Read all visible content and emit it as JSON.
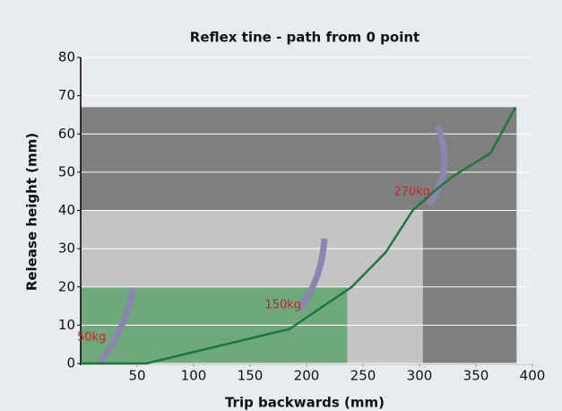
{
  "chart_data": {
    "type": "line",
    "title": "Reflex tine - path from 0 point",
    "x_label": "Trip backwards (mm)",
    "y_label": "Release height (mm)",
    "xlim": [
      0,
      400
    ],
    "xticks": [
      50,
      100,
      150,
      200,
      250,
      300,
      350,
      400
    ],
    "ylim": [
      0,
      80
    ],
    "yticks": [
      0,
      10,
      20,
      30,
      40,
      50,
      60,
      70,
      80
    ],
    "grid": true,
    "zones": [
      {
        "x": [
          0,
          386
        ],
        "y": [
          0,
          67
        ],
        "color": "#7f7f7f"
      },
      {
        "x": [
          0,
          303
        ],
        "y": [
          0,
          40
        ],
        "color": "#c4c4c4"
      },
      {
        "x": [
          0,
          236
        ],
        "y": [
          0,
          20
        ],
        "color": "#6fa87a"
      }
    ],
    "series": [
      {
        "color": "#1a7a3a",
        "x": [
          0,
          58,
          185,
          240,
          270,
          294,
          313,
          330,
          363,
          385
        ],
        "values": [
          0,
          0,
          9,
          20,
          29,
          40,
          45,
          49,
          55,
          67
        ]
      }
    ],
    "annotations": [
      "50kg",
      "150kg",
      "270kg"
    ]
  }
}
